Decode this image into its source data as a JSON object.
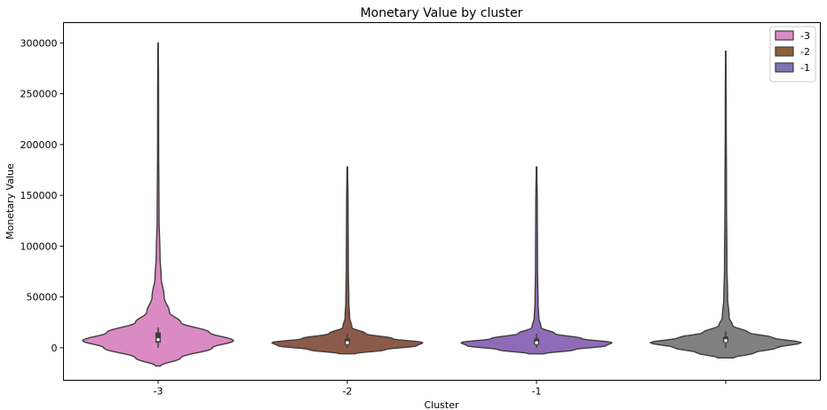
{
  "chart_data": {
    "type": "violin",
    "title": "Monetary Value by cluster",
    "xlabel": "Cluster",
    "ylabel": "Monetary Value",
    "categories": [
      "-3",
      "-2",
      "-1",
      ""
    ],
    "ylim": [
      -32000,
      320000
    ],
    "yticks": [
      0,
      50000,
      100000,
      150000,
      200000,
      250000,
      300000
    ],
    "ytick_labels": [
      "0",
      "50000",
      "100000",
      "150000",
      "200000",
      "250000",
      "300000"
    ],
    "grid": false,
    "legend": {
      "placement": "top-right",
      "entries": [
        {
          "label": "-3",
          "color": "#DA8BC3"
        },
        {
          "label": "-2",
          "color": "#8C613C"
        },
        {
          "label": "-1",
          "color": "#8172B3"
        }
      ]
    },
    "series": [
      {
        "category": "-3",
        "color": "#DA8BC3",
        "min": -18000,
        "max": 300000,
        "q1": 5000,
        "median": 8000,
        "q3": 15000,
        "whisker_low": 0,
        "whisker_high": 20000,
        "profile": [
          [
            -18000,
            0.03
          ],
          [
            -10000,
            0.3
          ],
          [
            0,
            0.72
          ],
          [
            7000,
            1.0
          ],
          [
            15000,
            0.68
          ],
          [
            25000,
            0.3
          ],
          [
            35000,
            0.15
          ],
          [
            50000,
            0.08
          ],
          [
            70000,
            0.04
          ],
          [
            90000,
            0.025
          ],
          [
            130000,
            0.012
          ],
          [
            200000,
            0.007
          ],
          [
            250000,
            0.006
          ],
          [
            300000,
            0.003
          ]
        ]
      },
      {
        "category": "-2",
        "color": "#8C5A4A",
        "min": -6000,
        "max": 178000,
        "q1": 3000,
        "median": 5000,
        "q3": 9000,
        "whisker_low": 0,
        "whisker_high": 14000,
        "profile": [
          [
            -6000,
            0.1
          ],
          [
            -2000,
            0.5
          ],
          [
            2000,
            0.92
          ],
          [
            5000,
            1.0
          ],
          [
            9000,
            0.6
          ],
          [
            14000,
            0.24
          ],
          [
            20000,
            0.06
          ],
          [
            30000,
            0.03
          ],
          [
            45000,
            0.02
          ],
          [
            80000,
            0.013
          ],
          [
            140000,
            0.01
          ],
          [
            178000,
            0.004
          ]
        ]
      },
      {
        "category": "-1",
        "color": "#8F6CB8",
        "min": -6000,
        "max": 178000,
        "q1": 3000,
        "median": 5000,
        "q3": 9000,
        "whisker_low": 0,
        "whisker_high": 14000,
        "profile": [
          [
            -6000,
            0.1
          ],
          [
            -2000,
            0.5
          ],
          [
            2000,
            0.92
          ],
          [
            5000,
            1.0
          ],
          [
            9000,
            0.6
          ],
          [
            14000,
            0.24
          ],
          [
            20000,
            0.06
          ],
          [
            30000,
            0.03
          ],
          [
            45000,
            0.02
          ],
          [
            80000,
            0.013
          ],
          [
            140000,
            0.01
          ],
          [
            178000,
            0.004
          ]
        ]
      },
      {
        "category": "",
        "color": "#808080",
        "min": -10000,
        "max": 292000,
        "q1": 5000,
        "median": 7000,
        "q3": 11000,
        "whisker_low": 0,
        "whisker_high": 16000,
        "profile": [
          [
            -10000,
            0.1
          ],
          [
            -5000,
            0.38
          ],
          [
            0,
            0.68
          ],
          [
            5000,
            1.0
          ],
          [
            10000,
            0.62
          ],
          [
            15000,
            0.3
          ],
          [
            22000,
            0.09
          ],
          [
            30000,
            0.045
          ],
          [
            50000,
            0.025
          ],
          [
            80000,
            0.016
          ],
          [
            150000,
            0.01
          ],
          [
            230000,
            0.006
          ],
          [
            292000,
            0.003
          ]
        ]
      }
    ]
  }
}
